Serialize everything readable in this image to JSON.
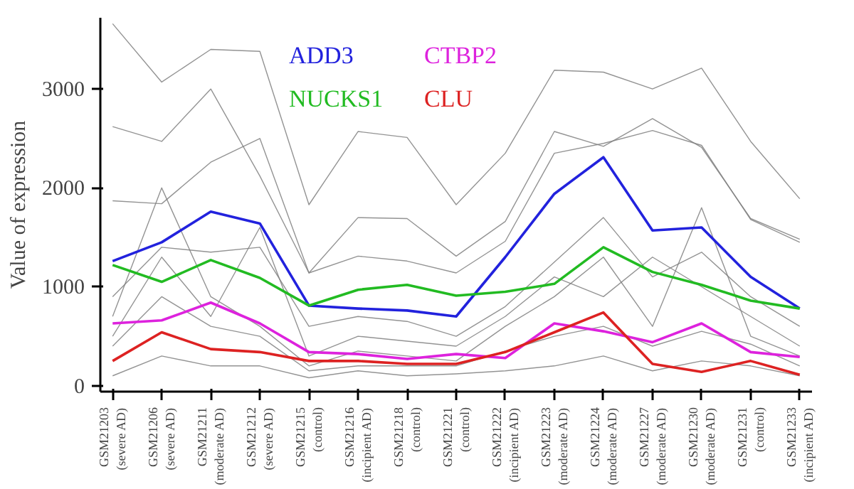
{
  "chart_data": {
    "type": "line",
    "ylabel": "Value of expression",
    "categories": [
      "GSM21203\n(severe AD)",
      "GSM21206\n(severe AD)",
      "GSM21211\n(moderate AD)",
      "GSM21212\n(severe AD)",
      "GSM21215\n(control)",
      "GSM21216\n(incipient AD)",
      "GSM21218\n(control)",
      "GSM21221\n(control)",
      "GSM21222\n(incipient AD)",
      "GSM21223\n(moderate AD)",
      "GSM21224\n(moderate AD)",
      "GSM21227\n(moderate AD)",
      "GSM21230\n(moderate AD)",
      "GSM21231\n(control)",
      "GSM21233\n(incipient AD)"
    ],
    "series": [
      {
        "color": "#808080",
        "values": [
          3660,
          3070,
          3400,
          3380,
          1830,
          2570,
          2510,
          1830,
          2350,
          3190,
          3170,
          3000,
          3210,
          2470,
          1890
        ]
      },
      {
        "color": "#808080",
        "values": [
          2620,
          2470,
          3000,
          2120,
          1140,
          1700,
          1690,
          1310,
          1660,
          2570,
          2420,
          2700,
          2410,
          1690,
          1480
        ]
      },
      {
        "color": "#808080",
        "values": [
          1870,
          1840,
          2260,
          2500,
          1140,
          1310,
          1260,
          1140,
          1460,
          2350,
          2450,
          2580,
          2430,
          1680,
          1450
        ]
      },
      {
        "color": "#808080",
        "values": [
          700,
          2000,
          900,
          600,
          200,
          350,
          300,
          250,
          600,
          900,
          1300,
          600,
          1800,
          500,
          300
        ]
      },
      {
        "color": "#808080",
        "values": [
          900,
          1400,
          1350,
          1400,
          600,
          700,
          650,
          500,
          800,
          1250,
          1700,
          1100,
          1350,
          900,
          600
        ]
      },
      {
        "color": "#808080",
        "values": [
          500,
          1300,
          700,
          1600,
          300,
          500,
          450,
          400,
          700,
          1100,
          900,
          1300,
          1000,
          700,
          400
        ]
      },
      {
        "color": "#808080",
        "values": [
          400,
          900,
          600,
          500,
          150,
          200,
          200,
          200,
          350,
          500,
          600,
          400,
          550,
          420,
          200
        ]
      },
      {
        "color": "#808080",
        "values": [
          100,
          300,
          200,
          200,
          80,
          150,
          100,
          120,
          150,
          200,
          300,
          150,
          250,
          200,
          100
        ]
      },
      {
        "name": "ADD3",
        "color": "#2222dd",
        "values": [
          1260,
          1450,
          1760,
          1640,
          810,
          780,
          760,
          700,
          1300,
          1940,
          2310,
          1570,
          1600,
          1100,
          780
        ]
      },
      {
        "name": "NUCKS1",
        "color": "#22bb22",
        "values": [
          1220,
          1050,
          1270,
          1090,
          810,
          970,
          1020,
          910,
          950,
          1030,
          1400,
          1150,
          1020,
          860,
          780
        ]
      },
      {
        "name": "CTBP2",
        "color": "#dd22dd",
        "values": [
          630,
          660,
          840,
          630,
          340,
          320,
          270,
          320,
          280,
          630,
          550,
          440,
          630,
          340,
          290
        ]
      },
      {
        "name": "CLU",
        "color": "#dd2222",
        "values": [
          250,
          540,
          370,
          340,
          250,
          250,
          220,
          220,
          340,
          540,
          740,
          220,
          140,
          250,
          110
        ]
      }
    ],
    "ylim": [
      -60,
      3720
    ],
    "yticks": [
      0,
      1000,
      2000,
      3000
    ],
    "grid": false,
    "marker": "none",
    "line_style": "solid"
  }
}
